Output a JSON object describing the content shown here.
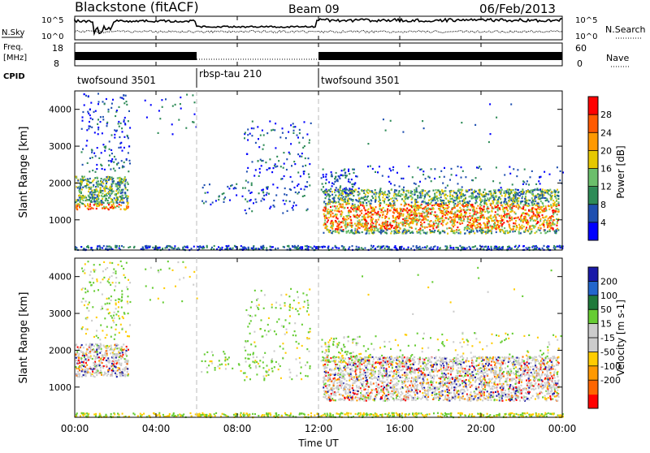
{
  "header": {
    "radar": "Blackstone (fitACF)",
    "beam": "Beam 09",
    "date": "06/Feb/2013"
  },
  "top_panels": {
    "nsky_label": "N.Sky",
    "nsearch_label": "N.Search",
    "freq_label_1": "Freq.",
    "freq_label_2": "[MHz]",
    "nave_label": "Nave",
    "cpid_label": "CPID",
    "noise_ticks": [
      "10^5",
      "10^0"
    ],
    "freq_ticks": [
      "18",
      "8"
    ],
    "nave_ticks": [
      "60",
      "0"
    ],
    "cpid_segments": [
      {
        "label": "twofsound 3501",
        "start_hour": 0,
        "end_hour": 6
      },
      {
        "label": "rbsp-tau 210",
        "start_hour": 6,
        "end_hour": 12
      },
      {
        "label": "twofsound 3501",
        "start_hour": 12,
        "end_hour": 24
      }
    ]
  },
  "colors": {
    "power_scale": [
      "#0000ff",
      "#1f4fb0",
      "#2e8b57",
      "#6bbf6b",
      "#e6c800",
      "#ff9900",
      "#ff5a00",
      "#ff0000"
    ],
    "velocity_scale": [
      "#1a1aa8",
      "#2266cc",
      "#1f7a3a",
      "#66cc33",
      "#cccccc",
      "#cccccc",
      "#ffcc00",
      "#ff9900",
      "#ff6600",
      "#ff0000"
    ]
  },
  "chart_data": [
    {
      "type": "heatmap",
      "name": "power",
      "ylabel": "Slant Range [km]",
      "ylim": [
        180,
        4500
      ],
      "yticks": [
        "1000",
        "2000",
        "3000",
        "4000"
      ],
      "colorbar_label": "Power [dB]",
      "colorbar_ticks": [
        "4",
        "8",
        "12",
        "16",
        "20",
        "24",
        "28"
      ],
      "clim": [
        0,
        32
      ]
    },
    {
      "type": "heatmap",
      "name": "velocity",
      "ylabel": "Slant Range [km]",
      "ylim": [
        180,
        4500
      ],
      "yticks": [
        "1000",
        "2000",
        "3000",
        "4000"
      ],
      "colorbar_label": "Velocity [m s-1]",
      "colorbar_ticks": [
        "200",
        "100",
        "50",
        "15",
        "-15",
        "-50",
        "-100",
        "-200"
      ],
      "clim": [
        -250,
        250
      ]
    }
  ],
  "xaxis": {
    "label": "Time UT",
    "xlim": [
      0,
      24
    ],
    "tick_labels": [
      "00:00",
      "04:00",
      "08:00",
      "12:00",
      "16:00",
      "20:00",
      "00:00"
    ]
  }
}
